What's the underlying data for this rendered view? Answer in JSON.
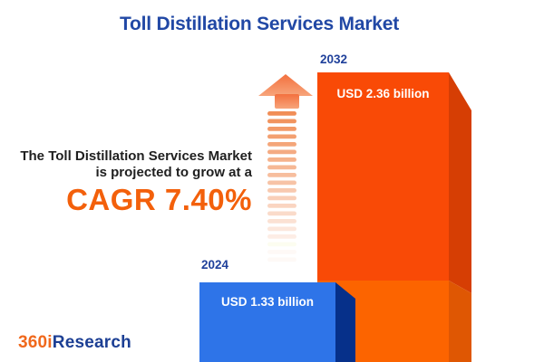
{
  "title": "Toll Distillation Services Market",
  "headline": {
    "line1": "The Toll Distillation Services Market",
    "line2": "is projected to grow at a",
    "cagr": "CAGR 7.40%"
  },
  "chart_data": {
    "type": "bar",
    "title": "Toll Distillation Services Market",
    "unit": "USD billion",
    "categories": [
      "2024",
      "2032"
    ],
    "values": [
      1.33,
      2.36
    ],
    "value_labels": [
      "USD 1.33 billion",
      "USD 2.36 billion"
    ],
    "cagr_percent": 7.4,
    "ylim": [
      0,
      2.36
    ],
    "grid": false,
    "legend": "none",
    "style": "3d-bars-with-growth-arrow"
  },
  "bars": [
    {
      "year": "2024",
      "value_label": "USD 1.33 billion",
      "front_color": "#2E74E8",
      "side_color": "#06308A"
    },
    {
      "year": "2032",
      "value_label": "USD 2.36 billion",
      "front_color": "#F94A06",
      "front_color_lower": "#FC6400",
      "side_color": "#D63E04",
      "side_color_lower": "#DF5703"
    }
  ],
  "icons": {
    "growth_arrow": "striped-up-arrow"
  },
  "colors": {
    "background": "#FFFFFF",
    "title": "#2148A5",
    "year_label": "#20419B",
    "headline_text": "#1F1F1F",
    "cagr": "#F3600B",
    "arrow": "#F0884E",
    "logo_orange": "#F0681C",
    "logo_blue": "#1C3F94"
  },
  "logo": {
    "part1": "360i",
    "part2": "Research"
  }
}
